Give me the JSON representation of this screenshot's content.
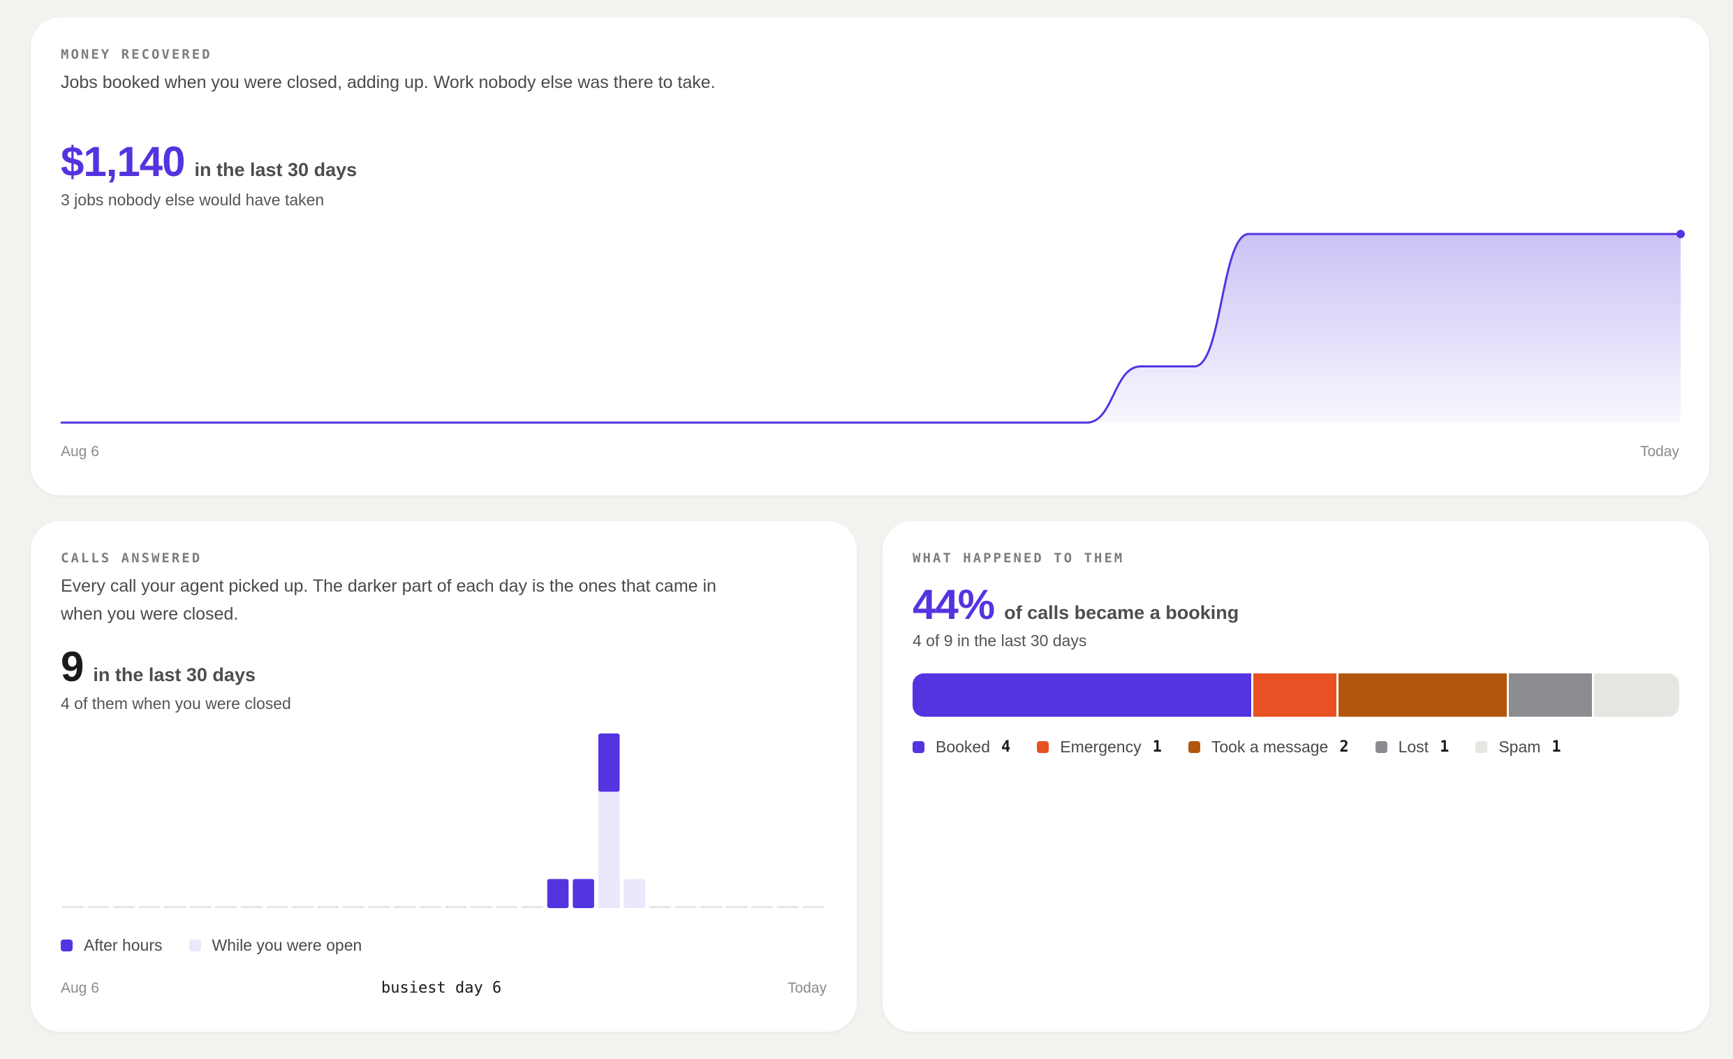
{
  "accent": "#5433e0",
  "money": {
    "eyebrow": "MONEY RECOVERED",
    "description": "Jobs booked when you were closed, adding up. Work nobody else was there to take.",
    "amount": "$1,140",
    "suffix": "in the last 30 days",
    "sub": "3 jobs nobody else would have taken",
    "x_start": "Aug 6",
    "x_end": "Today"
  },
  "calls": {
    "eyebrow": "CALLS ANSWERED",
    "description": "Every call your agent picked up. The darker part of each day is the ones that came in when you were closed.",
    "count": "9",
    "suffix": "in the last 30 days",
    "sub": "4 of them when you were closed",
    "legend": [
      {
        "label": "After hours",
        "color": "#5433e0"
      },
      {
        "label": "While you were open",
        "color": "#ebe8fb"
      }
    ],
    "x_start": "Aug 6",
    "busiest": "busiest day 6",
    "x_end": "Today"
  },
  "outcomes": {
    "eyebrow": "WHAT HAPPENED TO THEM",
    "percent": "44%",
    "suffix": "of calls became a booking",
    "sub": "4 of 9 in the last 30 days",
    "segments": [
      {
        "label": "Booked",
        "count": 4,
        "color": "#5433e0"
      },
      {
        "label": "Emergency",
        "count": 1,
        "color": "#e85124"
      },
      {
        "label": "Took a message",
        "count": 2,
        "color": "#b2560e"
      },
      {
        "label": "Lost",
        "count": 1,
        "color": "#8a8c90"
      },
      {
        "label": "Spam",
        "count": 1,
        "color": "#e5e5e1"
      }
    ]
  },
  "chart_data": [
    {
      "type": "area",
      "title": "MONEY RECOVERED",
      "x_range": [
        "Aug 6",
        "Today"
      ],
      "x": [
        0,
        18,
        19,
        20,
        21,
        22,
        23,
        30
      ],
      "y": [
        0,
        0,
        0,
        340,
        340,
        1140,
        1140,
        1140
      ],
      "series": [
        {
          "name": "",
          "values": [
            0,
            0,
            0,
            340,
            340,
            1140,
            1140,
            1140
          ]
        }
      ],
      "ylim": [
        0,
        1140
      ],
      "grid": false,
      "legend": "none"
    },
    {
      "type": "bar",
      "stacked": true,
      "title": "CALLS ANSWERED",
      "x_range": [
        "Aug 6",
        "Today"
      ],
      "categories": [
        "1",
        "2",
        "3",
        "4",
        "5",
        "6",
        "7",
        "8",
        "9",
        "10",
        "11",
        "12",
        "13",
        "14",
        "15",
        "16",
        "17",
        "18",
        "19",
        "20",
        "21",
        "22",
        "23",
        "24",
        "25",
        "26",
        "27",
        "28",
        "29",
        "30"
      ],
      "series": [
        {
          "name": "After hours",
          "values": [
            0,
            0,
            0,
            0,
            0,
            0,
            0,
            0,
            0,
            0,
            0,
            0,
            0,
            0,
            0,
            0,
            0,
            0,
            0,
            1,
            1,
            2,
            0,
            0,
            0,
            0,
            0,
            0,
            0,
            0
          ]
        },
        {
          "name": "While you were open",
          "values": [
            0,
            0,
            0,
            0,
            0,
            0,
            0,
            0,
            0,
            0,
            0,
            0,
            0,
            0,
            0,
            0,
            0,
            0,
            0,
            0,
            0,
            4,
            1,
            0,
            0,
            0,
            0,
            0,
            0,
            0
          ]
        }
      ],
      "ylim": [
        0,
        6
      ],
      "legend": "bottom-left"
    }
  ]
}
